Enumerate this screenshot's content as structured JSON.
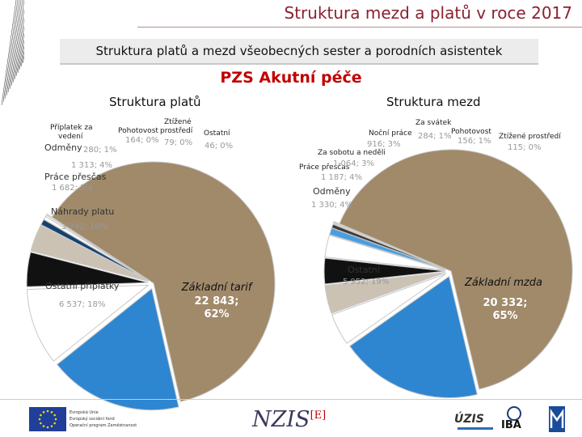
{
  "header": {
    "title": "Struktura mezd a platů v roce 2017",
    "subtitle": "Struktura platů a mezd všeobecných sester a porodních asistentek",
    "section": "PZS Akutní péče"
  },
  "chart_data": [
    {
      "type": "pie",
      "title": "Struktura platů",
      "slices": [
        {
          "name": "Základní tarif",
          "value": 22843,
          "percent": "62%",
          "color": "#a08a6a"
        },
        {
          "name": "Ostatní příplatky",
          "value": 6537,
          "percent": "18%",
          "color": "#2e86d1"
        },
        {
          "name": "Náhrady platu",
          "value": 3742,
          "percent": "10%",
          "color": "#ffffff"
        },
        {
          "name": "Práce přesčas",
          "value": 1682,
          "percent": "5%",
          "color": "#111111"
        },
        {
          "name": "Odměny",
          "value": 1313,
          "percent": "4%",
          "color": "#cbc2b4"
        },
        {
          "name": "Příplatek za vedení",
          "value": 280,
          "percent": "1%",
          "color": "#17426e"
        },
        {
          "name": "Pohotovost",
          "value": 164,
          "percent": "0%",
          "color": "#ffffff"
        },
        {
          "name": "Ztížené prostředí",
          "value": 79,
          "percent": "0%",
          "color": "#ffffff"
        },
        {
          "name": "Ostatní",
          "value": 46,
          "percent": "0%",
          "color": "#ffffff"
        }
      ],
      "labels": [
        {
          "name": "Základní tarif",
          "value_text": "22 843;",
          "percent_text": "62%"
        },
        {
          "name": "Ostatní příplatky",
          "value_text": "6 537; 18%"
        },
        {
          "name": "Náhrady platu",
          "value_text": "3 742; 10%"
        },
        {
          "name": "Práce přesčas",
          "value_text": "1 682; 5%"
        },
        {
          "name": "Odměny",
          "value_text": "1 313; 4%"
        },
        {
          "name_line1": "Příplatek za",
          "name_line2": "vedení",
          "value_text": "280; 1%"
        },
        {
          "name": "Pohotovost",
          "value_text": "164; 0%"
        },
        {
          "name_line1": "Ztížené",
          "name_line2": "prostředí",
          "value_text": "79; 0%"
        },
        {
          "name": "Ostatní",
          "value_text": "46; 0%"
        }
      ]
    },
    {
      "type": "pie",
      "title": "Struktura mezd",
      "slices": [
        {
          "name": "Základní mzda",
          "value": 20332,
          "percent": "65%",
          "color": "#a08a6a"
        },
        {
          "name": "Ostatní",
          "value": 5952,
          "percent": "19%",
          "color": "#2e86d1"
        },
        {
          "name": "Odměny",
          "value": 1330,
          "percent": "4%",
          "color": "#ffffff"
        },
        {
          "name": "Práce přesčas",
          "value": 1187,
          "percent": "4%",
          "color": "#cbc2b4"
        },
        {
          "name": "Za sobotu a neděli",
          "value": 1064,
          "percent": "3%",
          "color": "#111111"
        },
        {
          "name": "Noční práce",
          "value": 916,
          "percent": "3%",
          "color": "#ffffff"
        },
        {
          "name": "Za svátek",
          "value": 284,
          "percent": "1%",
          "color": "#4a9ee0"
        },
        {
          "name": "Pohotovost",
          "value": 156,
          "percent": "1%",
          "color": "#3a3a3a"
        },
        {
          "name": "Ztížené prostředí",
          "value": 115,
          "percent": "0%",
          "color": "#d8d0c4"
        }
      ],
      "labels": [
        {
          "name": "Základní mzda",
          "value_text": "20 332;",
          "percent_text": "65%"
        },
        {
          "name": "Ostatní",
          "value_text": "5 952; 19%"
        },
        {
          "name": "Odměny",
          "value_text": "1 330; 4%"
        },
        {
          "name": "Práce přesčas",
          "value_text": "1 187; 4%"
        },
        {
          "name": "Za sobotu a neděli",
          "value_text": "1 064; 3%"
        },
        {
          "name": "Noční práce",
          "value_text": "916; 3%"
        },
        {
          "name": "Za svátek",
          "value_text": "284; 1%"
        },
        {
          "name": "Pohotovost",
          "value_text": "156; 1%"
        },
        {
          "name": "Ztížené prostředí",
          "value_text": "115; 0%"
        }
      ]
    }
  ],
  "footer": {
    "eu_line1": "Evropská Unie",
    "eu_line2": "Evropský sociální fond",
    "eu_line3": "Operační program Zaměstnanost",
    "nzis": "NZIS",
    "nzis_mark": "[E]",
    "uzis": "ÚZIS",
    "iba": "IBA"
  }
}
